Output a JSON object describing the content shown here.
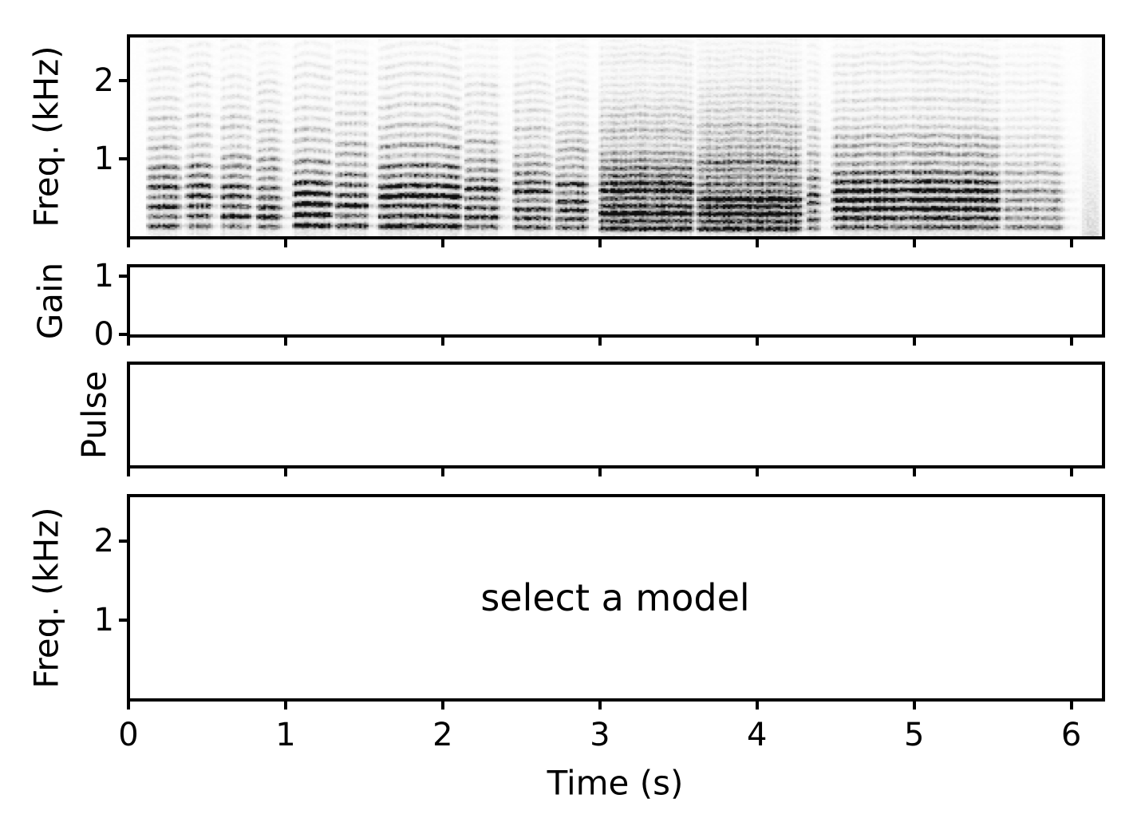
{
  "figure": {
    "background": "#ffffff",
    "text_color": "#000000",
    "xlabel": "Time (s)",
    "x_ticks": [
      0,
      1,
      2,
      3,
      4,
      5,
      6
    ],
    "xlim_s": [
      0,
      6.2
    ],
    "panels": [
      {
        "id": "spectrogram",
        "ylabel": "Freq. (kHz)",
        "y_ticks": [
          1,
          2
        ],
        "ylim": [
          0,
          2.56
        ],
        "content": "spectrogram"
      },
      {
        "id": "gain",
        "ylabel": "Gain",
        "y_ticks": [
          0,
          1
        ],
        "ylim": [
          0,
          1.15
        ],
        "content": "empty"
      },
      {
        "id": "pulse",
        "ylabel": "Pulse",
        "y_ticks": [],
        "ylim": [
          0,
          1
        ],
        "content": "empty"
      },
      {
        "id": "model-output",
        "ylabel": "Freq. (kHz)",
        "y_ticks": [
          1,
          2
        ],
        "ylim": [
          0,
          2.56
        ],
        "content": "empty",
        "annotation": "select a model"
      }
    ]
  },
  "chart_data": [
    {
      "type": "heatmap",
      "subplot": "spectrogram",
      "title": "",
      "xlabel": "Time (s)",
      "ylabel": "Freq. (kHz)",
      "xlim_s": [
        0,
        6.2
      ],
      "ylim_khz": [
        0,
        2.56
      ],
      "yticks": [
        1,
        2
      ],
      "colormap": "gray_r",
      "description": "log-magnitude spectrogram of a voiced audio signal: stacked harmonic bands (darkest below ~0.8 kHz) grouped into note/syllable segments, silence before 0.1 s and after ~6.0 s with a faint noise burst near 6.1 s",
      "segments": [
        {
          "t0": 0.1,
          "t1": 0.33,
          "f0_khz": 0.125,
          "amp": 0.8,
          "arch": 0.012
        },
        {
          "t0": 0.35,
          "t1": 0.53,
          "f0_khz": 0.128,
          "amp": 0.85,
          "arch": 0.012
        },
        {
          "t0": 0.57,
          "t1": 0.78,
          "f0_khz": 0.126,
          "amp": 0.8,
          "arch": 0.015
        },
        {
          "t0": 0.8,
          "t1": 0.97,
          "f0_khz": 0.122,
          "amp": 0.75,
          "arch": 0.012
        },
        {
          "t0": 1.03,
          "t1": 1.29,
          "f0_khz": 0.135,
          "amp": 0.95,
          "arch": 0.02
        },
        {
          "t0": 1.3,
          "t1": 1.53,
          "f0_khz": 0.13,
          "amp": 0.9,
          "arch": 0.015
        },
        {
          "t0": 1.57,
          "t1": 2.12,
          "f0_khz": 0.126,
          "amp": 0.95,
          "arch": 0.035
        },
        {
          "t0": 2.12,
          "t1": 2.36,
          "f0_khz": 0.12,
          "amp": 0.85,
          "arch": 0.015
        },
        {
          "t0": 2.43,
          "t1": 2.69,
          "f0_khz": 0.114,
          "amp": 0.75,
          "arch": 0.015
        },
        {
          "t0": 2.7,
          "t1": 2.93,
          "f0_khz": 0.11,
          "amp": 0.8,
          "arch": 0.012
        },
        {
          "t0": 2.98,
          "t1": 3.6,
          "f0_khz": 0.096,
          "amp": 0.95,
          "arch": 0.015
        },
        {
          "t0": 3.6,
          "t1": 4.28,
          "f0_khz": 0.094,
          "amp": 1.0,
          "arch": 0.015
        },
        {
          "t0": 4.3,
          "t1": 4.4,
          "f0_khz": 0.105,
          "amp": 0.7,
          "arch": 0.01
        },
        {
          "t0": 4.46,
          "t1": 5.55,
          "f0_khz": 0.115,
          "amp": 0.85,
          "arch": 0.02
        },
        {
          "t0": 5.55,
          "t1": 5.95,
          "f0_khz": 0.115,
          "amp": 0.45,
          "arch": 0.01
        },
        {
          "t0": 6.05,
          "t1": 6.18,
          "f0_khz": 0,
          "amp": 0.3,
          "noise_only": true
        }
      ]
    },
    {
      "type": "line",
      "subplot": "gain",
      "ylabel": "Gain",
      "yticks": [
        0,
        1
      ],
      "ylim": [
        0,
        1.15
      ],
      "series": []
    },
    {
      "type": "line",
      "subplot": "pulse",
      "ylabel": "Pulse",
      "yticks": [],
      "series": []
    },
    {
      "type": "line",
      "subplot": "model-output",
      "ylabel": "Freq. (kHz)",
      "yticks": [
        1,
        2
      ],
      "ylim_khz": [
        0,
        2.56
      ],
      "annotation": "select a model",
      "series": []
    }
  ]
}
